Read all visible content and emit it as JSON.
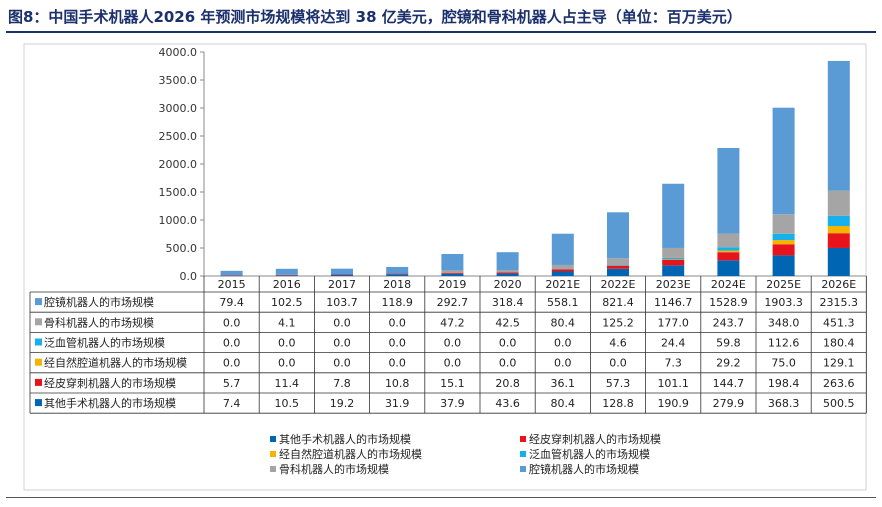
{
  "title": "图8：中国手术机器人2026 年预测市场规模将达到 38 亿美元，腔镜和骨科机器人占主导（单位：百万美元）",
  "chart_data": {
    "type": "bar",
    "stacked": true,
    "categories": [
      "2015",
      "2016",
      "2017",
      "2018",
      "2019",
      "2020",
      "2021E",
      "2022E",
      "2023E",
      "2024E",
      "2025E",
      "2026E"
    ],
    "ylim": [
      0,
      4000
    ],
    "yticks": [
      "0.0",
      "500.0",
      "1000.0",
      "1500.0",
      "2000.0",
      "2500.0",
      "3000.0",
      "3500.0",
      "4000.0"
    ],
    "grid": false,
    "legend": "bottom",
    "series": [
      {
        "name": "其他手术机器人的市场规模",
        "color": "#0066b3",
        "values": [
          7.4,
          10.5,
          19.2,
          31.9,
          37.9,
          43.6,
          80.4,
          128.8,
          190.9,
          279.9,
          368.3,
          500.5
        ],
        "labels": [
          "7.4",
          "10.5",
          "19.2",
          "31.9",
          "37.9",
          "43.6",
          "80.4",
          "128.8",
          "190.9",
          "279.9",
          "368.3",
          "500.5"
        ]
      },
      {
        "name": "经皮穿刺机器人的市场规模",
        "color": "#e8141b",
        "values": [
          5.7,
          11.4,
          7.8,
          10.8,
          15.1,
          20.8,
          36.1,
          57.3,
          101.1,
          144.7,
          198.4,
          263.6
        ],
        "labels": [
          "5.7",
          "11.4",
          "7.8",
          "10.8",
          "15.1",
          "20.8",
          "36.1",
          "57.3",
          "101.1",
          "144.7",
          "198.4",
          "263.6"
        ]
      },
      {
        "name": "经自然腔道机器人的市场规模",
        "color": "#f5b400",
        "values": [
          0,
          0,
          0,
          0,
          0,
          0,
          0,
          0,
          7.3,
          29.2,
          75.0,
          129.1
        ],
        "labels": [
          "0.0",
          "0.0",
          "0.0",
          "0.0",
          "0.0",
          "0.0",
          "0.0",
          "0.0",
          "7.3",
          "29.2",
          "75.0",
          "129.1"
        ]
      },
      {
        "name": "泛血管机器人的市场规模",
        "color": "#16b0ea",
        "values": [
          0,
          0,
          0,
          0,
          0,
          0,
          0,
          4.6,
          24.4,
          59.8,
          112.6,
          180.4
        ],
        "labels": [
          "0.0",
          "0.0",
          "0.0",
          "0.0",
          "0.0",
          "0.0",
          "0.0",
          "4.6",
          "24.4",
          "59.8",
          "112.6",
          "180.4"
        ]
      },
      {
        "name": "骨科机器人的市场规模",
        "color": "#a5a5a5",
        "values": [
          0,
          4.1,
          0,
          0,
          47.2,
          42.5,
          80.4,
          125.2,
          177.0,
          243.7,
          348.0,
          451.3
        ],
        "labels": [
          "0.0",
          "4.1",
          "0.0",
          "0.0",
          "47.2",
          "42.5",
          "80.4",
          "125.2",
          "177.0",
          "243.7",
          "348.0",
          "451.3"
        ]
      },
      {
        "name": "腔镜机器人的市场规模",
        "color": "#5b9bd5",
        "values": [
          79.4,
          102.5,
          103.7,
          118.9,
          292.7,
          318.4,
          558.1,
          821.4,
          1146.7,
          1528.9,
          1903.3,
          2315.3
        ],
        "labels": [
          "79.4",
          "102.5",
          "103.7",
          "118.9",
          "292.7",
          "318.4",
          "558.1",
          "821.4",
          "1146.7",
          "1528.9",
          "1903.3",
          "2315.3"
        ]
      }
    ]
  }
}
